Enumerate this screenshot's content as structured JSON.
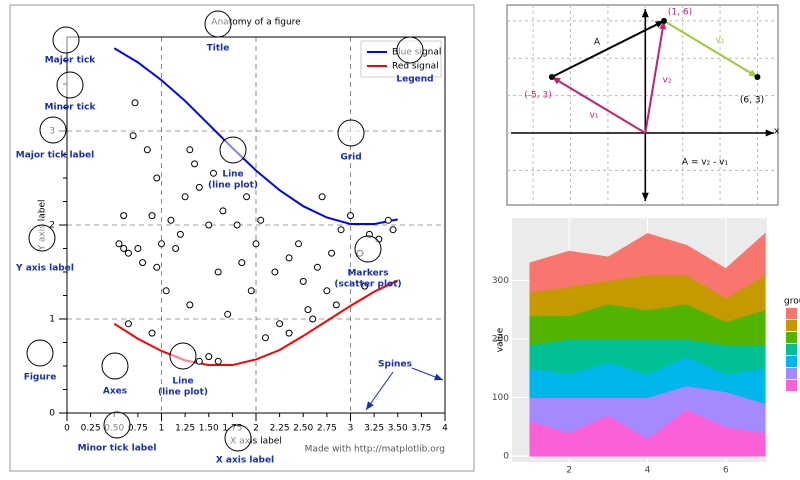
{
  "chart_data": [
    {
      "type": "line",
      "title": "Anatomy of a figure",
      "xlabel": "X axis label",
      "ylabel": "Y axis label",
      "xlim": [
        0,
        4
      ],
      "ylim": [
        0,
        4
      ],
      "xticks": [
        0,
        1,
        2,
        3,
        4
      ],
      "yticks": [
        0,
        1,
        2,
        3
      ],
      "xminorticks": [
        {
          "value": 0.25,
          "label": "0.25"
        },
        {
          "value": 0.5,
          "label": "0.50"
        },
        {
          "value": 0.75,
          "label": "0.75"
        },
        {
          "value": 1.25,
          "label": "1.25"
        },
        {
          "value": 1.5,
          "label": "1.50"
        },
        {
          "value": 1.75,
          "label": "1.75"
        },
        {
          "value": 2.25,
          "label": "2.25"
        },
        {
          "value": 2.5,
          "label": "2.50"
        },
        {
          "value": 2.75,
          "label": "2.75"
        },
        {
          "value": 3.25,
          "label": "3.25"
        },
        {
          "value": 3.5,
          "label": "3.50"
        },
        {
          "value": 3.75,
          "label": "3.75"
        }
      ],
      "yminorticks": [
        0.25,
        0.5,
        0.75,
        1.25,
        1.5,
        1.75,
        2.25,
        2.5,
        2.75,
        3.25,
        3.5,
        3.75
      ],
      "grid": true,
      "legend": "upper right",
      "series": [
        {
          "name": "Blue signal",
          "color": "#0000ff",
          "x": [
            0.5,
            0.75,
            1.0,
            1.25,
            1.5,
            1.75,
            2.0,
            2.25,
            2.5,
            2.75,
            3.0,
            3.25,
            3.5
          ],
          "values": [
            3.88,
            3.73,
            3.54,
            3.32,
            3.07,
            2.82,
            2.58,
            2.37,
            2.2,
            2.08,
            2.01,
            2.01,
            2.06
          ]
        },
        {
          "name": "Red signal",
          "color": "#ff0000",
          "x": [
            0.5,
            0.75,
            1.0,
            1.25,
            1.5,
            1.75,
            2.0,
            2.25,
            2.5,
            2.75,
            3.0,
            3.25,
            3.5
          ],
          "values": [
            0.95,
            0.79,
            0.66,
            0.56,
            0.51,
            0.51,
            0.57,
            0.67,
            0.82,
            0.98,
            1.14,
            1.29,
            1.41
          ]
        },
        {
          "kind": "scatter",
          "color": "#000000",
          "x": [
            0.72,
            0.7,
            0.85,
            0.6,
            0.95,
            0.9,
            1.0,
            1.05,
            1.3,
            1.35,
            1.25,
            1.4,
            1.5,
            1.55,
            1.2,
            1.6,
            1.65,
            1.7,
            1.8,
            1.85,
            1.95,
            2.0,
            2.05,
            2.2,
            2.25,
            2.35,
            2.45,
            2.5,
            2.6,
            2.65,
            2.75,
            2.8,
            2.9,
            3.0,
            3.1,
            3.2,
            3.3,
            3.4,
            3.45,
            0.55,
            0.6,
            0.75,
            0.8,
            0.95,
            1.1,
            1.15,
            1.4,
            1.5,
            1.6,
            2.1,
            2.35,
            2.55,
            0.65,
            0.9,
            1.3,
            2.7,
            3.15,
            0.65,
            1.9,
            2.85
          ],
          "values": [
            3.3,
            2.95,
            2.8,
            2.1,
            2.5,
            2.1,
            1.8,
            1.3,
            2.8,
            2.65,
            2.3,
            2.4,
            2.0,
            2.55,
            1.9,
            1.5,
            2.15,
            1.05,
            2.0,
            1.6,
            1.3,
            1.8,
            2.05,
            1.5,
            0.95,
            1.65,
            1.8,
            1.4,
            1.0,
            1.55,
            1.3,
            1.7,
            1.95,
            2.1,
            1.7,
            1.9,
            1.85,
            2.05,
            1.95,
            1.8,
            1.75,
            1.75,
            1.6,
            1.55,
            2.05,
            1.75,
            0.55,
            0.6,
            0.55,
            0.8,
            0.85,
            1.1,
            0.95,
            0.85,
            1.15,
            2.3,
            1.35,
            1.7,
            2.3,
            1.15
          ]
        }
      ],
      "annotations": [
        [
          "Major tick"
        ],
        [
          "Minor tick"
        ],
        [
          "Major tick label"
        ],
        [
          "Y axis label"
        ],
        [
          "Figure"
        ],
        [
          "Axes"
        ],
        [
          "Line",
          "(line plot)"
        ],
        [
          "Title"
        ],
        [
          "Legend"
        ],
        [
          "Grid"
        ],
        [
          "Line",
          "(line plot)"
        ],
        [
          "Markers",
          "(scatter plot)"
        ],
        [
          "Spines"
        ],
        [
          "Minor tick label"
        ],
        [
          "X axis label"
        ]
      ],
      "credit": "Made with http://matplotlib.org"
    },
    {
      "type": "vector",
      "xlim": [
        -7.4,
        7.1
      ],
      "ylim": [
        -3.85,
        6.85
      ],
      "xticks": [
        -6,
        -4,
        -2,
        0,
        2,
        4,
        6
      ],
      "yticks": [
        -2,
        0,
        2,
        4,
        6
      ],
      "xlabel": "x",
      "points": [
        {
          "x": -5,
          "y": 3,
          "label": "(-5, 3)",
          "color": "#c0226e"
        },
        {
          "x": 1,
          "y": 6,
          "label": "(1, 6)",
          "color": "#c0226e"
        },
        {
          "x": 6,
          "y": 3,
          "label": "(6, 3)",
          "color": "#000000"
        }
      ],
      "vectors": [
        {
          "label": "A",
          "color": "#000000",
          "from": [
            -5,
            3
          ],
          "to": [
            1,
            6
          ]
        },
        {
          "label": "v₂",
          "color": "#c0226e",
          "from": [
            0,
            0
          ],
          "to": [
            1,
            6
          ]
        },
        {
          "label": "v₁",
          "color": "#c0226e",
          "from": [
            0,
            0
          ],
          "to": [
            -5,
            3
          ]
        },
        {
          "label": "v₁",
          "color": "#9acd32",
          "from": [
            1,
            6
          ],
          "to": [
            6,
            3
          ]
        }
      ],
      "equation": "A = v₂ - v₁"
    },
    {
      "type": "area",
      "ylabel": "value",
      "legend_title": "group",
      "x": [
        1,
        2,
        3,
        4,
        5,
        6,
        7
      ],
      "xlim": [
        1,
        7
      ],
      "ylim": [
        0,
        400
      ],
      "xticks": [
        2,
        4,
        6
      ],
      "yticks": [
        0,
        100,
        200,
        300
      ],
      "series": [
        {
          "color": "#FB61D7",
          "values": [
            60,
            40,
            70,
            30,
            80,
            50,
            40
          ]
        },
        {
          "color": "#A58AFF",
          "values": [
            40,
            60,
            30,
            70,
            40,
            60,
            50
          ]
        },
        {
          "color": "#00B6EB",
          "values": [
            50,
            40,
            60,
            40,
            50,
            30,
            60
          ]
        },
        {
          "color": "#00C094",
          "values": [
            40,
            60,
            40,
            60,
            30,
            50,
            40
          ]
        },
        {
          "color": "#53B400",
          "values": [
            50,
            40,
            60,
            50,
            60,
            40,
            60
          ]
        },
        {
          "color": "#C49A00",
          "values": [
            40,
            50,
            40,
            60,
            50,
            40,
            60
          ]
        },
        {
          "color": "#F8766D",
          "values": [
            50,
            60,
            40,
            70,
            50,
            50,
            70
          ]
        }
      ]
    }
  ]
}
